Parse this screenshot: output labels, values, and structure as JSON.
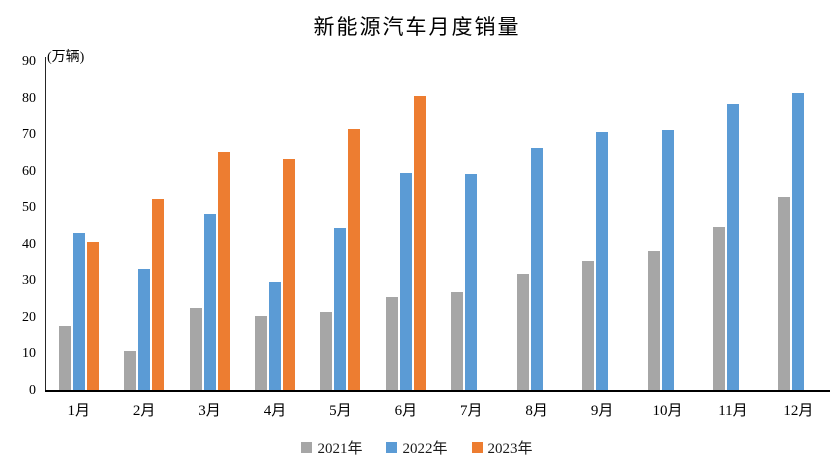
{
  "chart_data": {
    "type": "bar",
    "title": "新能源汽车月度销量",
    "ylabel": "(万辆)",
    "xlabel": "",
    "categories": [
      "1月",
      "2月",
      "3月",
      "4月",
      "5月",
      "6月",
      "7月",
      "8月",
      "9月",
      "10月",
      "11月",
      "12月"
    ],
    "series": [
      {
        "name": "2021年",
        "color": "#A6A6A6",
        "values": [
          17.9,
          11.0,
          22.6,
          20.6,
          21.7,
          25.6,
          27.1,
          32.1,
          35.7,
          38.3,
          45.0,
          53.1
        ]
      },
      {
        "name": "2022年",
        "color": "#5B9BD5",
        "values": [
          43.1,
          33.4,
          48.4,
          29.9,
          44.7,
          59.6,
          59.3,
          66.6,
          70.8,
          71.4,
          78.6,
          81.4
        ]
      },
      {
        "name": "2023年",
        "color": "#ED7D31",
        "values": [
          40.8,
          52.5,
          65.3,
          63.6,
          71.7,
          80.6,
          null,
          null,
          null,
          null,
          null,
          null
        ]
      }
    ],
    "ylim": [
      0,
      90
    ],
    "y_ticks": [
      0,
      10,
      20,
      30,
      40,
      50,
      60,
      70,
      80,
      90
    ],
    "grid": false,
    "legend_position": "bottom",
    "colors": {
      "axis_line": "#262626",
      "baseline": "#000000",
      "text": "#000000"
    }
  }
}
